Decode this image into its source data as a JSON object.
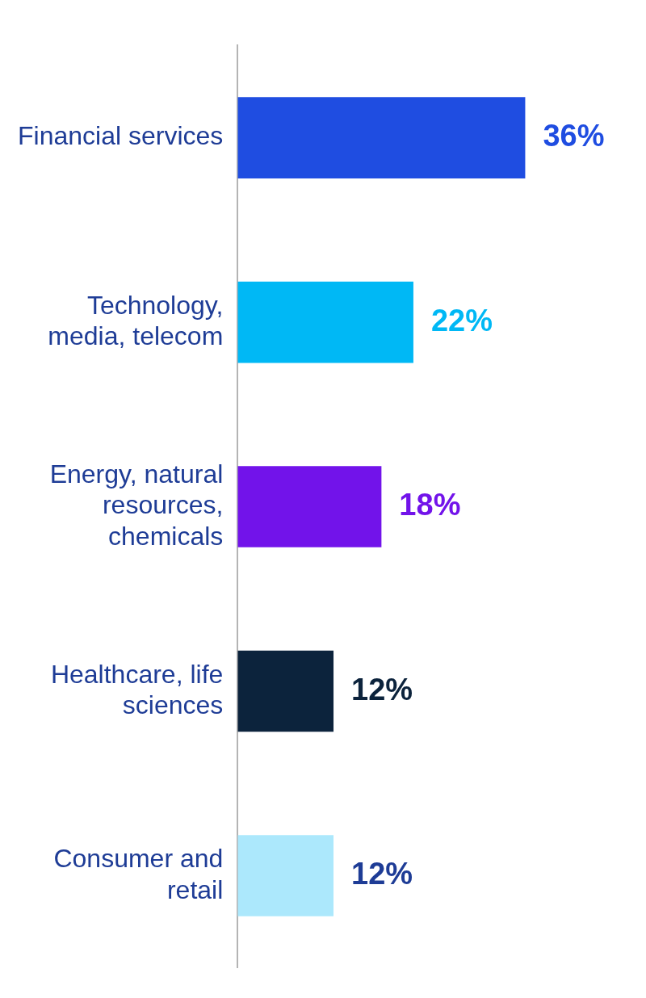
{
  "chart_data": {
    "type": "bar",
    "orientation": "horizontal",
    "categories": [
      "Financial services",
      "Technology, media, telecom",
      "Energy, natural resources, chemicals",
      "Healthcare, life sciences",
      "Consumer and retail"
    ],
    "values": [
      36,
      22,
      18,
      12,
      12
    ],
    "colors": [
      "#1f4de1",
      "#00b8f5",
      "#7213ea",
      "#0c233c",
      "#ace8fc"
    ],
    "value_labels": [
      "36%",
      "22%",
      "18%",
      "12%",
      "12%"
    ],
    "grid": false,
    "legend": false,
    "tick_labels": "y"
  }
}
